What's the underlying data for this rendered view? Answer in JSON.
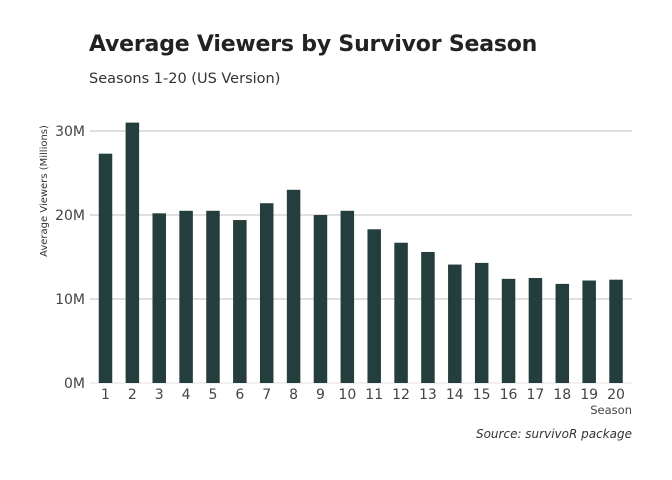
{
  "chart_data": {
    "type": "bar",
    "title": "Average Viewers by Survivor Season",
    "subtitle": "Seasons 1-20 (US Version)",
    "xlabel": "Season",
    "ylabel": "Average Viewers (Millions)",
    "caption": "Source: survivoR package",
    "categories": [
      "1",
      "2",
      "3",
      "4",
      "5",
      "6",
      "7",
      "8",
      "9",
      "10",
      "11",
      "12",
      "13",
      "14",
      "15",
      "16",
      "17",
      "18",
      "19",
      "20"
    ],
    "values": [
      27.3,
      31.0,
      20.2,
      20.5,
      20.5,
      19.4,
      21.4,
      23.0,
      20.0,
      20.5,
      18.3,
      16.7,
      15.6,
      14.1,
      14.3,
      12.4,
      12.5,
      11.8,
      12.2,
      12.3
    ],
    "units": "millions",
    "ylim": [
      0,
      31
    ],
    "yticks": [
      0,
      10,
      20,
      30
    ],
    "ytick_labels": [
      "0M",
      "10M",
      "20M",
      "30M"
    ],
    "grid": "horizontal",
    "legend": "none",
    "colors": {
      "bar": "#243d3d",
      "grid": "#cccccc"
    }
  }
}
